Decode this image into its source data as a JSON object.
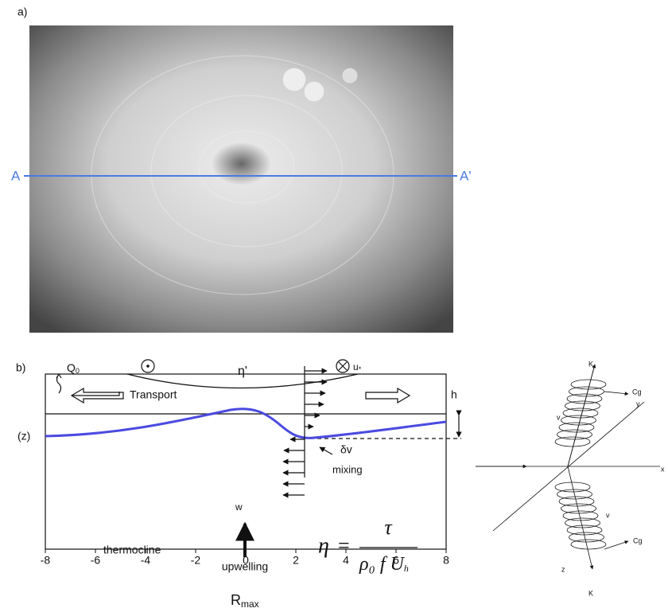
{
  "panel_a": {
    "label": "a)",
    "section_start": "A",
    "section_end": "A'"
  },
  "panel_b": {
    "label": "b)",
    "heat_flux": {
      "text": "Q",
      "sub": "0"
    },
    "surface": "η'",
    "friction": {
      "text": "u",
      "sub": "*"
    },
    "transport": "Transport",
    "h": "h",
    "z": "(z)",
    "dv": "δv",
    "mixing": "mixing",
    "w": "w",
    "thermocline": "thermocline",
    "upwelling": "upwelling",
    "equation": {
      "lhs": "η",
      "eq": "=",
      "numerator": "τ",
      "denominator": "ρ₀ f U",
      "denominator_sub": "h"
    },
    "axis": {
      "lim": [
        -8,
        8
      ],
      "ticks": [
        -8,
        -6,
        -4,
        -2,
        0,
        2,
        4,
        6,
        8
      ],
      "label": "R",
      "label_sub": "max"
    }
  },
  "panel_c": {
    "k_top": "K",
    "k_bottom": "K",
    "cg_top": "Cg",
    "cg_bottom": "Cg",
    "v1": "v",
    "v2": "v",
    "x": "x",
    "y": "y",
    "z": "z"
  }
}
